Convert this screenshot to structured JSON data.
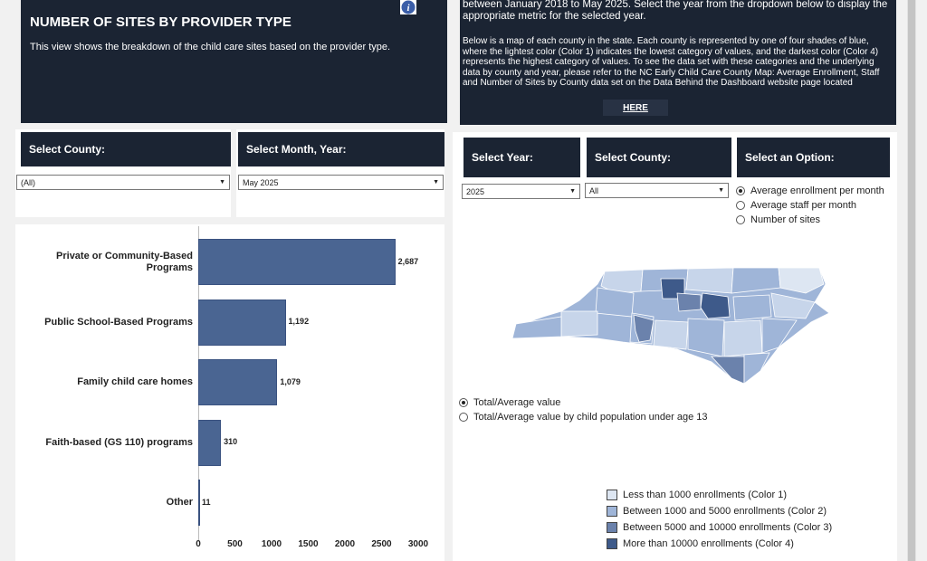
{
  "left_header": {
    "title": "NUMBER OF SITES BY PROVIDER TYPE",
    "description": "This view shows the breakdown of the child care sites based on the provider type."
  },
  "right_header": {
    "text_top": "between January 2018 to May 2025. Select the year from the dropdown below to display the appropriate metric for the selected year.",
    "text_body": "Below is a map of each county in the state. Each county is represented by one of four shades of blue, where the lightest color (Color 1) indicates the lowest category of values, and the darkest color (Color 4) represents the highest category of values. To see the data set with these categories and the underlying data by county and year, please refer to the NC Early Child Care County Map: Average Enrollment, Staff and Number of Sites by County data set on the Data Behind the Dashboard website page located",
    "link_label": "HERE"
  },
  "filters_left": {
    "county_label": "Select County:",
    "county_value": "(All)",
    "month_label": "Select Month, Year:",
    "month_value": "May 2025"
  },
  "filters_right": {
    "year_label": "Select Year:",
    "year_value": "2025",
    "county_label": "Select County:",
    "county_value": "All",
    "option_label": "Select an Option:",
    "options": [
      "Average enrollment per month",
      "Average staff per month",
      "Number of sites"
    ],
    "selected_option": 0
  },
  "value_mode": {
    "options": [
      "Total/Average value",
      "Total/Average value by child population under age 13"
    ],
    "selected": 0
  },
  "legend": {
    "items": [
      {
        "label": "Less than 1000 enrollments (Color 1)",
        "color": "#dde6f2"
      },
      {
        "label": "Between 1000 and 5000 enrollments (Color 2)",
        "color": "#9fb5d8"
      },
      {
        "label": "Between 5000 and 10000 enrollments (Color 3)",
        "color": "#6b82ac"
      },
      {
        "label": "More than 10000 enrollments (Color 4)",
        "color": "#3e5a8a"
      }
    ]
  },
  "colors": {
    "bar": "#4a6592",
    "dark_panel": "#1b2433",
    "info_icon": "#3b5ea8"
  },
  "chart_data": {
    "type": "bar",
    "orientation": "horizontal",
    "categories": [
      "Private or Community-Based Programs",
      "Public School-Based Programs",
      "Family child care homes",
      "Faith-based (GS 110) programs",
      "Other"
    ],
    "category_display": [
      "Private or Community-Based\nPrograms",
      "Public School-Based Programs",
      "Family child care homes",
      "Faith-based (GS 110) programs",
      "Other"
    ],
    "values": [
      2687,
      1192,
      1079,
      310,
      11
    ],
    "value_labels": [
      "2,687",
      "1,192",
      "1,079",
      "310",
      "11"
    ],
    "xlim": [
      0,
      3000
    ],
    "xticks": [
      "0",
      "500",
      "1000",
      "1500",
      "2000",
      "2500",
      "3000"
    ],
    "xtick_values": [
      0,
      500,
      1000,
      1500,
      2000,
      2500,
      3000
    ],
    "title": "",
    "xlabel": "",
    "ylabel": ""
  }
}
